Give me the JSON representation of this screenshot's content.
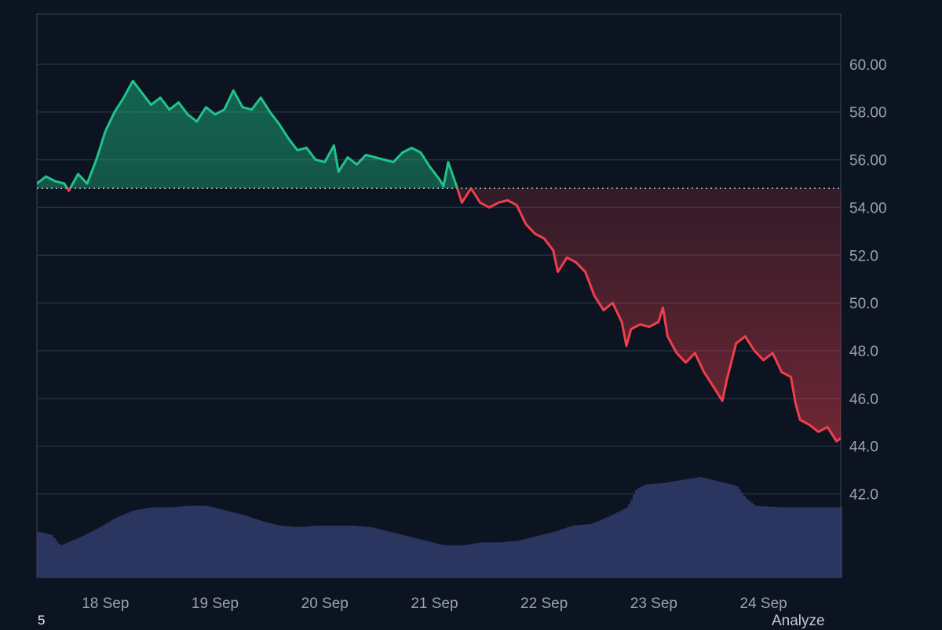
{
  "corner": {
    "left_text": "5",
    "right_text": "Analyze"
  },
  "colors": {
    "background": "#0d1421",
    "grid": "#262e3f",
    "axis_text": "#9aa2b2",
    "up": "#1ec48a",
    "down": "#ef3e4d",
    "volume": "#2a3560",
    "baseline": "#c0c6d2"
  },
  "chart_data": {
    "type": "area",
    "baseline_style": "dotted",
    "baseline": 54.8,
    "ylim": [
      38.5,
      62.1
    ],
    "y_ticks": [
      {
        "value": 42,
        "label": "42.0"
      },
      {
        "value": 44,
        "label": "44.0"
      },
      {
        "value": 46,
        "label": "46.0"
      },
      {
        "value": 48,
        "label": "48.0"
      },
      {
        "value": 50,
        "label": "50.0"
      },
      {
        "value": 52,
        "label": "52.0"
      },
      {
        "value": 54,
        "label": "54.00"
      },
      {
        "value": 56,
        "label": "56.00"
      },
      {
        "value": 58,
        "label": "58.00"
      },
      {
        "value": 60,
        "label": "60.00"
      }
    ],
    "x_ticks": [
      {
        "date": "2024-09-18",
        "label": "18 Sep"
      },
      {
        "date": "2024-09-19",
        "label": "19 Sep"
      },
      {
        "date": "2024-09-20",
        "label": "20 Sep"
      },
      {
        "date": "2024-09-21",
        "label": "21 Sep"
      },
      {
        "date": "2024-09-22",
        "label": "22 Sep"
      },
      {
        "date": "2024-09-23",
        "label": "23 Sep"
      },
      {
        "date": "2024-09-24",
        "label": "24 Sep"
      }
    ],
    "x_range": [
      "2024-09-17 09:00",
      "2024-09-24 14:00"
    ],
    "grid": true,
    "series": [
      {
        "points": [
          [
            "2024-09-17 09:00",
            55.0
          ],
          [
            "2024-09-17 11:00",
            55.3
          ],
          [
            "2024-09-17 13:00",
            55.1
          ],
          [
            "2024-09-17 15:00",
            55.0
          ],
          [
            "2024-09-17 16:00",
            54.7
          ],
          [
            "2024-09-17 18:00",
            55.4
          ],
          [
            "2024-09-17 20:00",
            55.0
          ],
          [
            "2024-09-17 22:00",
            56.0
          ],
          [
            "2024-09-18 00:00",
            57.2
          ],
          [
            "2024-09-18 02:00",
            58.0
          ],
          [
            "2024-09-18 04:00",
            58.6
          ],
          [
            "2024-09-18 06:00",
            59.3
          ],
          [
            "2024-09-18 08:00",
            58.8
          ],
          [
            "2024-09-18 10:00",
            58.3
          ],
          [
            "2024-09-18 12:00",
            58.6
          ],
          [
            "2024-09-18 14:00",
            58.1
          ],
          [
            "2024-09-18 16:00",
            58.4
          ],
          [
            "2024-09-18 18:00",
            57.9
          ],
          [
            "2024-09-18 20:00",
            57.6
          ],
          [
            "2024-09-18 22:00",
            58.2
          ],
          [
            "2024-09-19 00:00",
            57.9
          ],
          [
            "2024-09-19 02:00",
            58.1
          ],
          [
            "2024-09-19 04:00",
            58.9
          ],
          [
            "2024-09-19 06:00",
            58.2
          ],
          [
            "2024-09-19 08:00",
            58.1
          ],
          [
            "2024-09-19 10:00",
            58.6
          ],
          [
            "2024-09-19 12:00",
            58.0
          ],
          [
            "2024-09-19 14:00",
            57.5
          ],
          [
            "2024-09-19 16:00",
            56.9
          ],
          [
            "2024-09-19 18:00",
            56.4
          ],
          [
            "2024-09-19 20:00",
            56.5
          ],
          [
            "2024-09-19 22:00",
            56.0
          ],
          [
            "2024-09-20 00:00",
            55.9
          ],
          [
            "2024-09-20 02:00",
            56.6
          ],
          [
            "2024-09-20 03:00",
            55.5
          ],
          [
            "2024-09-20 05:00",
            56.1
          ],
          [
            "2024-09-20 07:00",
            55.8
          ],
          [
            "2024-09-20 09:00",
            56.2
          ],
          [
            "2024-09-20 11:00",
            56.1
          ],
          [
            "2024-09-20 13:00",
            56.0
          ],
          [
            "2024-09-20 15:00",
            55.9
          ],
          [
            "2024-09-20 17:00",
            56.3
          ],
          [
            "2024-09-20 19:00",
            56.5
          ],
          [
            "2024-09-20 21:00",
            56.3
          ],
          [
            "2024-09-20 23:00",
            55.7
          ],
          [
            "2024-09-21 01:00",
            55.2
          ],
          [
            "2024-09-21 02:00",
            54.9
          ],
          [
            "2024-09-21 03:00",
            55.9
          ],
          [
            "2024-09-21 05:00",
            54.8
          ],
          [
            "2024-09-21 06:00",
            54.2
          ],
          [
            "2024-09-21 08:00",
            54.8
          ],
          [
            "2024-09-21 10:00",
            54.2
          ],
          [
            "2024-09-21 12:00",
            54.0
          ],
          [
            "2024-09-21 14:00",
            54.2
          ],
          [
            "2024-09-21 16:00",
            54.3
          ],
          [
            "2024-09-21 18:00",
            54.1
          ],
          [
            "2024-09-21 20:00",
            53.3
          ],
          [
            "2024-09-21 22:00",
            52.9
          ],
          [
            "2024-09-22 00:00",
            52.7
          ],
          [
            "2024-09-22 02:00",
            52.2
          ],
          [
            "2024-09-22 03:00",
            51.3
          ],
          [
            "2024-09-22 05:00",
            51.9
          ],
          [
            "2024-09-22 07:00",
            51.7
          ],
          [
            "2024-09-22 09:00",
            51.3
          ],
          [
            "2024-09-22 11:00",
            50.3
          ],
          [
            "2024-09-22 13:00",
            49.7
          ],
          [
            "2024-09-22 15:00",
            50.0
          ],
          [
            "2024-09-22 17:00",
            49.2
          ],
          [
            "2024-09-22 18:00",
            48.2
          ],
          [
            "2024-09-22 19:00",
            48.9
          ],
          [
            "2024-09-22 21:00",
            49.1
          ],
          [
            "2024-09-22 23:00",
            49.0
          ],
          [
            "2024-09-23 01:00",
            49.2
          ],
          [
            "2024-09-23 02:00",
            49.8
          ],
          [
            "2024-09-23 03:00",
            48.6
          ],
          [
            "2024-09-23 05:00",
            47.9
          ],
          [
            "2024-09-23 07:00",
            47.5
          ],
          [
            "2024-09-23 09:00",
            47.9
          ],
          [
            "2024-09-23 11:00",
            47.1
          ],
          [
            "2024-09-23 13:00",
            46.5
          ],
          [
            "2024-09-23 15:00",
            45.9
          ],
          [
            "2024-09-23 16:00",
            46.8
          ],
          [
            "2024-09-23 18:00",
            48.3
          ],
          [
            "2024-09-23 20:00",
            48.6
          ],
          [
            "2024-09-23 22:00",
            48.0
          ],
          [
            "2024-09-24 00:00",
            47.6
          ],
          [
            "2024-09-24 02:00",
            47.9
          ],
          [
            "2024-09-24 04:00",
            47.1
          ],
          [
            "2024-09-24 06:00",
            46.9
          ],
          [
            "2024-09-24 07:00",
            45.8
          ],
          [
            "2024-09-24 08:00",
            45.1
          ],
          [
            "2024-09-24 10:00",
            44.9
          ],
          [
            "2024-09-24 12:00",
            44.6
          ],
          [
            "2024-09-24 14:00",
            44.8
          ],
          [
            "2024-09-24 16:00",
            44.2
          ],
          [
            "2024-09-24 18:00",
            44.5
          ],
          [
            "2024-09-24 19:00",
            44.9
          ],
          [
            "2024-09-24 20:00",
            44.3
          ],
          [
            "2024-09-24 21:00",
            43.6
          ],
          [
            "2024-09-24 22:00",
            43.8
          ]
        ]
      }
    ],
    "volume": [
      [
        "2024-09-17 09:00",
        0.3
      ],
      [
        "2024-09-17 12:00",
        0.28
      ],
      [
        "2024-09-17 14:00",
        0.21
      ],
      [
        "2024-09-17 18:00",
        0.26
      ],
      [
        "2024-09-17 22:00",
        0.32
      ],
      [
        "2024-09-18 02:00",
        0.39
      ],
      [
        "2024-09-18 06:00",
        0.44
      ],
      [
        "2024-09-18 10:00",
        0.46
      ],
      [
        "2024-09-18 14:00",
        0.46
      ],
      [
        "2024-09-18 18:00",
        0.47
      ],
      [
        "2024-09-18 22:00",
        0.47
      ],
      [
        "2024-09-19 02:00",
        0.44
      ],
      [
        "2024-09-19 06:00",
        0.41
      ],
      [
        "2024-09-19 10:00",
        0.37
      ],
      [
        "2024-09-19 14:00",
        0.34
      ],
      [
        "2024-09-19 18:00",
        0.33
      ],
      [
        "2024-09-19 22:00",
        0.34
      ],
      [
        "2024-09-20 02:00",
        0.34
      ],
      [
        "2024-09-20 06:00",
        0.34
      ],
      [
        "2024-09-20 10:00",
        0.33
      ],
      [
        "2024-09-20 14:00",
        0.3
      ],
      [
        "2024-09-20 18:00",
        0.27
      ],
      [
        "2024-09-20 22:00",
        0.24
      ],
      [
        "2024-09-21 02:00",
        0.21
      ],
      [
        "2024-09-21 06:00",
        0.21
      ],
      [
        "2024-09-21 10:00",
        0.23
      ],
      [
        "2024-09-21 14:00",
        0.23
      ],
      [
        "2024-09-21 18:00",
        0.24
      ],
      [
        "2024-09-21 22:00",
        0.27
      ],
      [
        "2024-09-22 02:00",
        0.3
      ],
      [
        "2024-09-22 06:00",
        0.34
      ],
      [
        "2024-09-22 10:00",
        0.35
      ],
      [
        "2024-09-22 14:00",
        0.4
      ],
      [
        "2024-09-22 18:00",
        0.46
      ],
      [
        "2024-09-22 20:00",
        0.58
      ],
      [
        "2024-09-22 22:00",
        0.61
      ],
      [
        "2024-09-23 02:00",
        0.62
      ],
      [
        "2024-09-23 06:00",
        0.64
      ],
      [
        "2024-09-23 10:00",
        0.66
      ],
      [
        "2024-09-23 14:00",
        0.63
      ],
      [
        "2024-09-23 18:00",
        0.6
      ],
      [
        "2024-09-23 20:00",
        0.52
      ],
      [
        "2024-09-23 22:00",
        0.47
      ],
      [
        "2024-09-24 04:00",
        0.46
      ],
      [
        "2024-09-24 10:00",
        0.46
      ],
      [
        "2024-09-24 16:00",
        0.46
      ],
      [
        "2024-09-24 20:00",
        0.47
      ],
      [
        "2024-09-24 23:00",
        0.5
      ]
    ]
  }
}
